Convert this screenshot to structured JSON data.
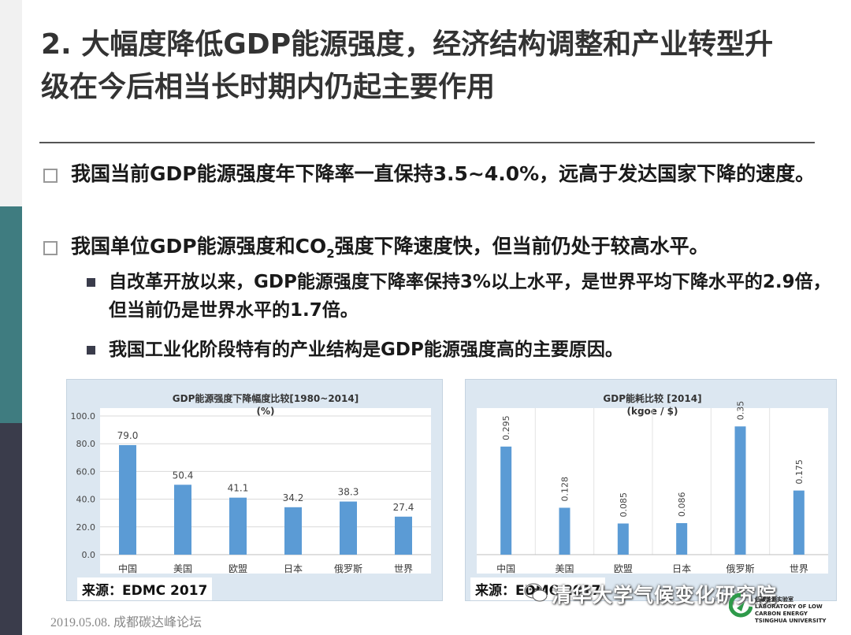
{
  "slide": {
    "title_line1": "2. 大幅度降低GDP能源强度，经济结构调整和产业转型升",
    "title_line2": "级在今后相当长时期内仍起主要作用",
    "bullet1": "我国当前GDP能源强度年下降率一直保持3.5~4.0%，远高于发达国家下降的速度。",
    "bullet2_pre": "我国单位GDP能源强度和CO",
    "bullet2_sub": "2",
    "bullet2_post": "强度下降速度快，但当前仍处于较高水平。",
    "sub1": "自改革开放以来，GDP能源强度下降率保持3%以上水平，是世界平均下降水平的2.9倍，但当前仍是世界水平的1.7倍。",
    "sub2": "我国工业化阶段特有的产业结构是GDP能源强度高的主要原因。",
    "footer": "2019.05.08. 成都碳达峰论坛",
    "watermark": "清华大学气候变化研究院",
    "lab_line1": "低碳能源实验室",
    "lab_line2": "LABORATORY OF LOW CARBON ENERGY",
    "lab_line3": "TSINGHUA UNIVERSITY"
  },
  "colors": {
    "bar": "#5b9bd5",
    "panel": "#dce7f1",
    "accent": "#3f7c80"
  },
  "chart_data": [
    {
      "type": "bar",
      "title": "GDP能源强度下降幅度比较[1980~2014]",
      "subtitle": "(%)",
      "categories": [
        "中国",
        "美国",
        "欧盟",
        "日本",
        "俄罗斯",
        "世界"
      ],
      "values": [
        79.0,
        50.4,
        41.1,
        34.2,
        38.3,
        27.4
      ],
      "value_labels": [
        "79.0",
        "50.4",
        "41.1",
        "34.2",
        "38.3",
        "27.4"
      ],
      "yticks": [
        "0.0",
        "20.0",
        "40.0",
        "60.0",
        "80.0",
        "100.0"
      ],
      "ylim": [
        0,
        100
      ],
      "grid": true,
      "source": "来源：EDMC 2017"
    },
    {
      "type": "bar",
      "title": "GDP能耗比较 [2014]",
      "subtitle": "(kgoe / $)",
      "categories": [
        "中国",
        "美国",
        "欧盟",
        "日本",
        "俄罗斯",
        "世界"
      ],
      "values": [
        0.295,
        0.128,
        0.085,
        0.086,
        0.35,
        0.175
      ],
      "value_labels": [
        "0.295",
        "0.128",
        "0.085",
        "0.086",
        "0.35",
        "0.175"
      ],
      "ylim": [
        0,
        0.4
      ],
      "grid": false,
      "source": "来源：EDMC 2017"
    }
  ]
}
